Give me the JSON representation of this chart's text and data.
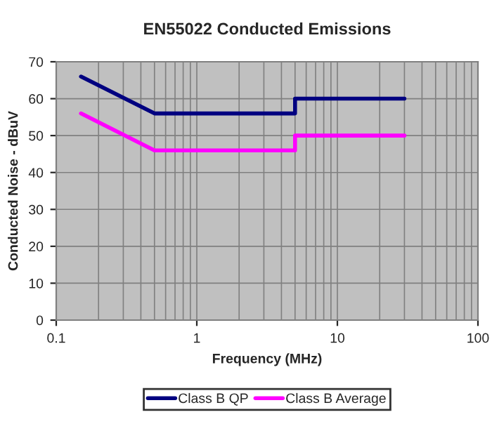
{
  "chart_data": {
    "type": "line",
    "title": "EN55022 Conducted Emissions",
    "xlabel": "Frequency (MHz)",
    "ylabel": "Conducted Noise - dBuV",
    "series": [
      {
        "name": "Class B QP",
        "color": "#000080",
        "x": [
          0.15,
          0.5,
          5,
          5,
          30
        ],
        "values": [
          66,
          56,
          56,
          60,
          60
        ]
      },
      {
        "name": "Class B Average",
        "color": "#ff00ff",
        "x": [
          0.15,
          0.5,
          5,
          5,
          30
        ],
        "values": [
          56,
          46,
          46,
          50,
          50
        ]
      }
    ],
    "log": "x",
    "xlim": [
      0.1,
      100
    ],
    "xticks": [
      0.1,
      1,
      10,
      100
    ],
    "ylim": [
      0,
      70
    ],
    "yticks": [
      0,
      10,
      20,
      30,
      40,
      50,
      60,
      70
    ],
    "grid": true,
    "legend": "bottom",
    "marker": "none",
    "line_style": "solid"
  }
}
